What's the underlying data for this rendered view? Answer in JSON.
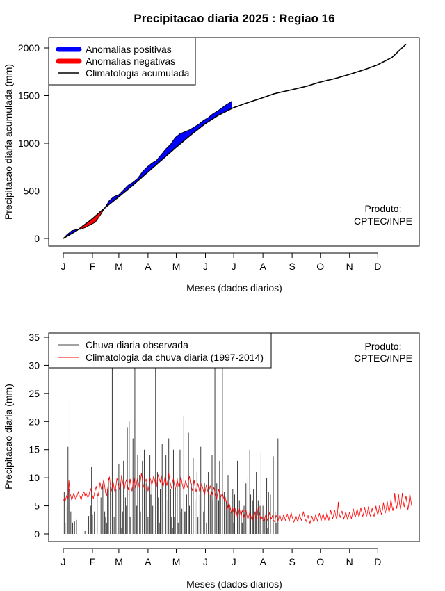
{
  "title": "Precipitacao diaria 2025 : Regiao 16",
  "months": [
    "J",
    "F",
    "M",
    "A",
    "M",
    "J",
    "J",
    "A",
    "S",
    "O",
    "N",
    "D"
  ],
  "chart_data": [
    {
      "type": "area",
      "ylabel": "Precipitacao diaria acumulada (mm)",
      "xlabel": "Meses (dados diarios)",
      "ylim": [
        0,
        2000
      ],
      "yticks": [
        "0",
        "500",
        "1000",
        "1500",
        "2000"
      ],
      "xlim_days": [
        1,
        365
      ],
      "legend": [
        "Anomalias positivas",
        "Anomalias negativas",
        "Climatologia acumulada"
      ],
      "legend_colors": [
        "#0000ff",
        "#ff0000",
        "#000000"
      ],
      "legend_position": "top-left",
      "credit": [
        "Produto:",
        "CPTEC/INPE"
      ],
      "observed_accum": {
        "days": [
          1,
          5,
          10,
          15,
          20,
          25,
          30,
          35,
          40,
          45,
          50,
          55,
          60,
          65,
          70,
          75,
          80,
          85,
          90,
          95,
          100,
          105,
          110,
          115,
          120,
          125,
          130,
          135,
          140,
          145,
          150,
          155,
          160,
          165,
          170,
          175,
          180
        ],
        "values": [
          0,
          40,
          80,
          95,
          98,
          118,
          145,
          170,
          240,
          320,
          400,
          440,
          460,
          510,
          560,
          590,
          630,
          700,
          750,
          790,
          820,
          880,
          940,
          990,
          1060,
          1100,
          1120,
          1140,
          1170,
          1200,
          1240,
          1270,
          1310,
          1340,
          1375,
          1410,
          1440
        ]
      },
      "climatology_accum": {
        "days": [
          1,
          15,
          31,
          45,
          59,
          75,
          90,
          105,
          120,
          135,
          151,
          165,
          181,
          195,
          212,
          225,
          243,
          260,
          273,
          290,
          304,
          320,
          334,
          350,
          365
        ],
        "values": [
          0,
          80,
          200,
          320,
          430,
          560,
          690,
          820,
          950,
          1075,
          1200,
          1290,
          1370,
          1420,
          1475,
          1520,
          1560,
          1600,
          1640,
          1680,
          1720,
          1770,
          1820,
          1900,
          2040
        ]
      }
    },
    {
      "type": "bar",
      "ylabel": "Precipitacao diaria (mm)",
      "xlabel": "Meses (dados diarios)",
      "ylim": [
        0,
        35
      ],
      "yticks": [
        "0",
        "5",
        "10",
        "15",
        "20",
        "25",
        "30",
        "35"
      ],
      "legend": [
        "Chuva diaria observada",
        "Climatologia da chuva diaria (1997-2014)"
      ],
      "legend_colors": [
        "#444444",
        "#ff0000"
      ],
      "legend_position": "top-left",
      "credit": [
        "Produto:",
        "CPTEC/INPE"
      ],
      "observed_daily": {
        "start_day": 1,
        "values": [
          0,
          7.5,
          2,
          0,
          5,
          15.5,
          8,
          23.8,
          4,
          0,
          2,
          0,
          2.2,
          0,
          2.5,
          0,
          0,
          0,
          0,
          0,
          0,
          0.8,
          0,
          0.5,
          0,
          0,
          0,
          3.2,
          0,
          5,
          12,
          3.5,
          0,
          4,
          0,
          0,
          7,
          0,
          0,
          0,
          6.5,
          1,
          9,
          0,
          4,
          3,
          2,
          8,
          10,
          0,
          8.5,
          0,
          31,
          0,
          3,
          0,
          8,
          0,
          0,
          12.5,
          0,
          9,
          1,
          4,
          13,
          0,
          6.5,
          5,
          19,
          0,
          20,
          3,
          13,
          0,
          17,
          0,
          31,
          0,
          5,
          14,
          0,
          10.5,
          4,
          0,
          13,
          0,
          15,
          0,
          9,
          4,
          3,
          0,
          14,
          7,
          9,
          5,
          0,
          0,
          31,
          0,
          11,
          6.5,
          2,
          8,
          0,
          16,
          4,
          0,
          0,
          14,
          0,
          6,
          17,
          0,
          8,
          3,
          1,
          15,
          3,
          8,
          0,
          10,
          2,
          0,
          15,
          4,
          4.5,
          0,
          21,
          4,
          4,
          7,
          0,
          18,
          5,
          0,
          9,
          0,
          13.5,
          0,
          6,
          0,
          11,
          3,
          0,
          7,
          15.5,
          0,
          0,
          4,
          9,
          0,
          2,
          0,
          11,
          0,
          7,
          0,
          14,
          6,
          0,
          32,
          0,
          9,
          0,
          6,
          13,
          7,
          0,
          32,
          0,
          7.5,
          0,
          6,
          0,
          10.5,
          0,
          5,
          4,
          0,
          8,
          2,
          7,
          0,
          0,
          13,
          0,
          6,
          0,
          4,
          2,
          4.5,
          5,
          0,
          9,
          0,
          10,
          0,
          15,
          7,
          0,
          6,
          8,
          0,
          4,
          11,
          0,
          6,
          0,
          5,
          14.5,
          0,
          5,
          0,
          3,
          0,
          10,
          1,
          7.5,
          0,
          7,
          0,
          0,
          13.8,
          0,
          4,
          2,
          0,
          17
        ]
      },
      "climatology_daily": {
        "start_day": 1,
        "values": [
          6,
          6.2,
          5.8,
          6.5,
          7,
          6.2,
          9.5,
          7.2,
          6.8,
          6,
          6.5,
          7.2,
          6.8,
          6.2,
          6.5,
          7,
          7.5,
          6.8,
          6.6,
          6,
          6.8,
          7.2,
          7.5,
          6.8,
          7.4,
          6.9,
          6.5,
          6.7,
          7.5,
          8,
          7.4,
          6.8,
          6.3,
          7.2,
          7.8,
          8.5,
          7.3,
          6.7,
          7.8,
          9.2,
          8.3,
          7.7,
          8.8,
          9.7,
          8.4,
          7.3,
          6.8,
          7.8,
          9.3,
          10.2,
          8.7,
          7.6,
          8.4,
          9.3,
          8.1,
          7.4,
          8.6,
          9.9,
          9.2,
          8.4,
          7.8,
          9,
          10.5,
          9.3,
          8.6,
          8,
          9.1,
          9.6,
          8.9,
          7.8,
          8.7,
          9.8,
          8.5,
          7.6,
          8.9,
          10.2,
          8.9,
          8.1,
          9.2,
          10,
          8.8,
          8.2,
          9.6,
          10.8,
          9.7,
          8.7,
          8.1,
          9.3,
          9.8,
          8.8,
          7.6,
          8.6,
          10,
          9.5,
          8.7,
          9.4,
          10.4,
          9.6,
          8.9,
          8.4,
          9.7,
          10.6,
          9.8,
          9.2,
          10.4,
          9.3,
          8.4,
          9.1,
          10.2,
          9.4,
          8.6,
          9.6,
          10.8,
          9.7,
          8.8,
          8.1,
          9.2,
          9.9,
          8.7,
          7.9,
          8.7,
          9.6,
          8.9,
          8.2,
          9.2,
          10.2,
          9.1,
          8.4,
          7.8,
          8.7,
          9.6,
          8.8,
          8.2,
          9.4,
          10.3,
          9.1,
          8.3,
          7.7,
          8.6,
          9.6,
          8.3,
          7.5,
          8.1,
          9,
          8.2,
          7.4,
          8.3,
          8.9,
          8.2,
          7.6,
          6.9,
          7.9,
          8.8,
          7.9,
          7.2,
          7.9,
          8.6,
          7.7,
          6.8,
          7.5,
          8.3,
          7.4,
          6.7,
          6.3,
          7.2,
          8,
          7.1,
          6.5,
          6.8,
          7.4,
          6.6,
          6,
          6.5,
          5.7,
          5.2,
          4.4,
          5.5,
          4.9,
          4.2,
          3.6,
          4.7,
          3.9,
          3.3,
          4.6,
          3.9,
          2.9,
          3.6,
          4.5,
          3.8,
          3.1,
          4.2,
          3.6,
          2.8,
          3.7,
          4.3,
          3.3,
          2.6,
          3.2,
          3.9,
          3.3,
          2.7,
          2.3,
          3.2,
          4,
          3.2,
          2.7,
          3.4,
          4.8,
          3.9,
          3.1,
          2.5,
          3,
          2.6,
          2.2,
          2.8,
          3.5,
          2.9,
          2.4,
          3.1,
          3.8,
          3.2,
          2.6,
          3.3,
          2.5,
          2.2,
          2.6,
          3.3,
          2.9,
          2.3,
          2.9,
          3.4,
          2.7,
          2.2,
          2.7,
          3.5,
          2.9,
          2.4,
          3,
          3.6,
          2.8,
          2.3,
          3.1,
          3.8,
          3.1,
          2.5,
          2.1,
          2.7,
          3.3,
          2.6,
          2.2,
          2.9,
          3.6,
          2.8,
          2.4,
          3.2,
          4,
          3.2,
          2.6,
          2.2,
          2.8,
          3.3,
          2.5,
          1.9,
          2.5,
          3.2,
          2.6,
          2.1,
          2.7,
          3.5,
          2.8,
          2.3,
          3.1,
          3.7,
          2.9,
          2.4,
          3.1,
          3.6,
          2.8,
          2.3,
          2.9,
          3.8,
          3.1,
          2.4,
          3.2,
          4.2,
          3.5,
          2.7,
          3.3,
          4.3,
          3.5,
          2.8,
          3.3,
          5.7,
          3.7,
          2.9,
          3.5,
          4.1,
          3.3,
          2.7,
          3.3,
          4,
          3.1,
          2.6,
          3.2,
          3.9,
          3.2,
          2.7,
          3.6,
          4.5,
          3.6,
          3,
          3.5,
          4.5,
          3.7,
          3,
          3.7,
          4.7,
          3.8,
          3.1,
          3.8,
          4.8,
          3.8,
          3.2,
          3.8,
          4.9,
          3.9,
          3.2,
          3.8,
          4.6,
          3.7,
          3.1,
          3.9,
          5,
          4,
          3.4,
          4.2,
          5.2,
          4.1,
          3.4,
          4.3,
          5.6,
          4.5,
          3.7,
          4.5,
          5.8,
          4.7,
          3.8,
          4.7,
          6.2,
          5,
          4.1,
          5,
          7.3,
          5.5,
          4.5,
          5.6,
          7.1,
          5.5,
          4.4,
          5.4,
          7.3,
          5.8,
          4.8,
          5.9,
          6.8,
          5.4,
          4.3,
          5.5,
          7.2,
          6,
          5
        ]
      }
    }
  ]
}
